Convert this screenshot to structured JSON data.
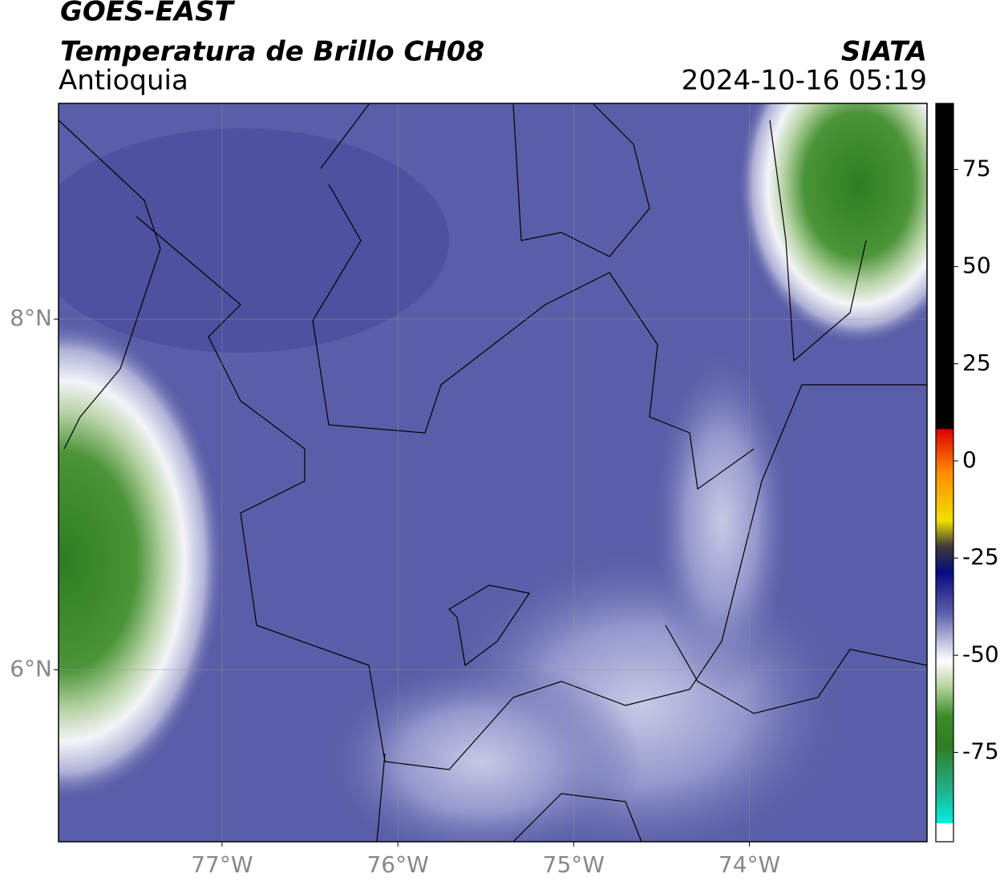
{
  "header": {
    "title": "GOES-EAST",
    "subtitle": "Temperatura de Brillo CH08",
    "region": "Antioquia",
    "source": "SIATA",
    "datetime": "2024-10-16 05:19"
  },
  "map": {
    "xlim": [
      -77.93,
      -72.99
    ],
    "ylim": [
      5.02,
      9.23
    ],
    "xticks": [
      {
        "value": -77,
        "label": "77°W"
      },
      {
        "value": -76,
        "label": "76°W"
      },
      {
        "value": -75,
        "label": "75°W"
      },
      {
        "value": -74,
        "label": "74°W"
      }
    ],
    "yticks": [
      {
        "value": 8,
        "label": "8°N"
      },
      {
        "value": 6,
        "label": "6°N"
      }
    ],
    "grid": true
  },
  "colorbar": {
    "lim": [
      -98,
      92
    ],
    "ticks": [
      75,
      50,
      25,
      0,
      -25,
      -50,
      -75
    ]
  }
}
